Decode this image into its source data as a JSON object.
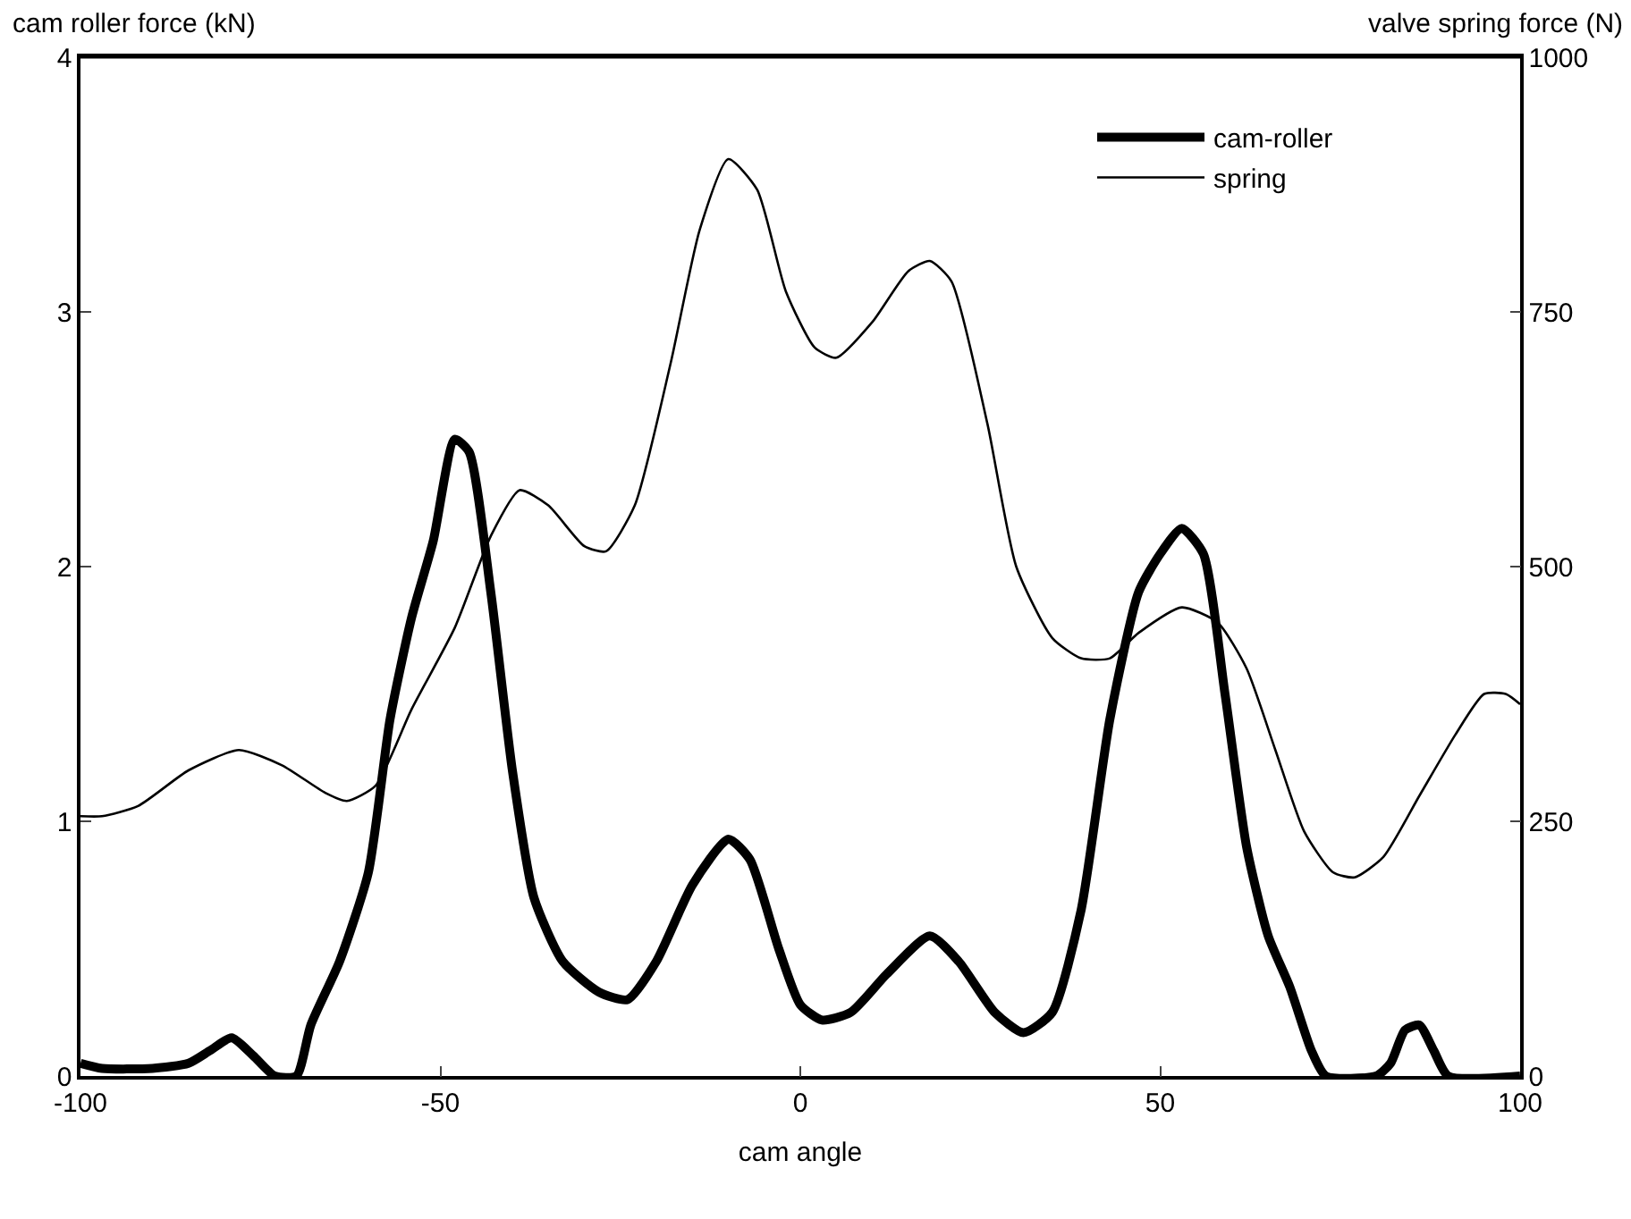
{
  "chart_data": {
    "type": "line",
    "xlabel": "cam angle",
    "ylabel": "cam roller force (kN)",
    "y2label": "valve spring force (N)",
    "xlim": [
      -100,
      100
    ],
    "xticks": [
      -100,
      -50,
      0,
      50,
      100
    ],
    "ylim": [
      0,
      4
    ],
    "yticks": [
      0,
      1,
      2,
      3,
      4
    ],
    "y2lim": [
      0,
      1000
    ],
    "y2ticks": [
      0,
      250,
      500,
      750,
      1000
    ],
    "grid": false,
    "legend": "top right",
    "marker": "none",
    "line_style": "solid",
    "series": [
      {
        "name": "cam-roller",
        "color": "#000000",
        "x": [
          -100,
          -97,
          -90,
          -85,
          -82,
          -79,
          -76,
          -73,
          -70,
          -68,
          -64,
          -60,
          -57,
          -54,
          -51,
          -48,
          -46,
          -43,
          -40,
          -37,
          -33,
          -28,
          -24,
          -20,
          -15,
          -10,
          -7,
          -3,
          0,
          3,
          7,
          12,
          18,
          22,
          27,
          31,
          35,
          39,
          43,
          47,
          50,
          53,
          56,
          59,
          62,
          65,
          68,
          71,
          73,
          80,
          82,
          84,
          86,
          88,
          90,
          100
        ],
        "values": [
          0.05,
          0.03,
          0.03,
          0.05,
          0.1,
          0.15,
          0.08,
          0,
          0,
          0.2,
          0.45,
          0.8,
          1.4,
          1.8,
          2.1,
          2.5,
          2.45,
          1.9,
          1.2,
          0.7,
          0.45,
          0.33,
          0.3,
          0.45,
          0.75,
          0.93,
          0.85,
          0.5,
          0.28,
          0.22,
          0.25,
          0.4,
          0.55,
          0.45,
          0.25,
          0.17,
          0.25,
          0.65,
          1.4,
          1.9,
          2.05,
          2.15,
          2.05,
          1.5,
          0.9,
          0.55,
          0.35,
          0.1,
          0,
          0,
          0.05,
          0.18,
          0.2,
          0.1,
          0,
          0
        ]
      },
      {
        "name": "spring",
        "color": "#000000",
        "axis": "y2",
        "x": [
          -100,
          -97,
          -92,
          -85,
          -78,
          -72,
          -66,
          -63,
          -59,
          -54,
          -48,
          -43,
          -39,
          -35,
          -30,
          -27,
          -23,
          -18,
          -14,
          -10,
          -6,
          -2,
          2,
          5,
          10,
          15,
          18,
          21,
          26,
          30,
          35,
          39,
          43,
          47,
          53,
          58,
          62,
          66,
          70,
          74,
          77,
          81,
          86,
          91,
          95,
          98,
          100
        ],
        "values": [
          255,
          255,
          265,
          300,
          320,
          305,
          278,
          270,
          285,
          360,
          440,
          530,
          575,
          560,
          520,
          515,
          560,
          700,
          830,
          900,
          870,
          770,
          715,
          705,
          740,
          790,
          800,
          780,
          640,
          500,
          430,
          410,
          410,
          435,
          460,
          445,
          400,
          320,
          240,
          200,
          195,
          215,
          275,
          335,
          375,
          375,
          365
        ]
      }
    ]
  }
}
